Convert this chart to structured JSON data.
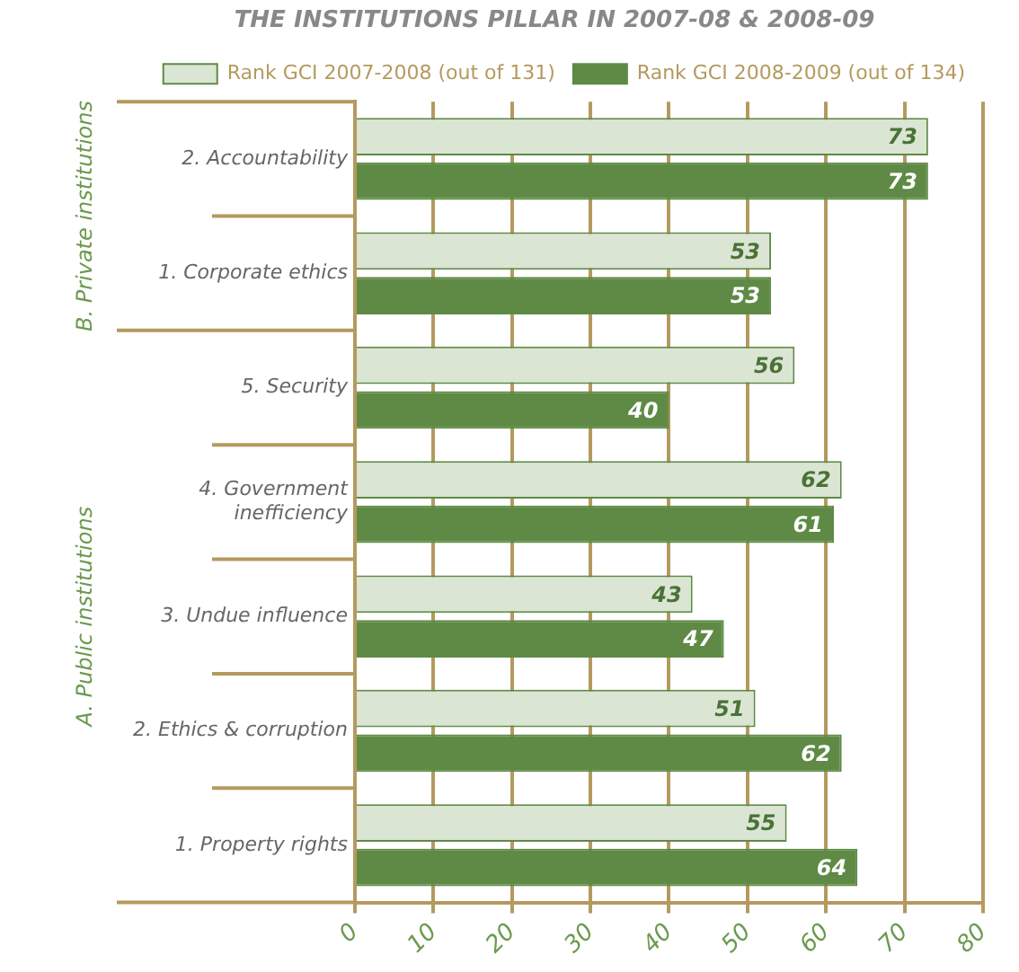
{
  "chart_data": {
    "type": "bar",
    "orientation": "horizontal",
    "title": "THE INSTITUTIONS PILLAR IN 2007-08 & 2008-09",
    "categories": [
      "2. Accountability",
      "1. Corporate ethics",
      "5. Security",
      "4. Government inefficiency",
      "3. Undue influence",
      "2. Ethics & corruption",
      "1. Property rights"
    ],
    "series": [
      {
        "name": "Rank GCI 2007-2008 (out of 131)",
        "color": "#dbe5d4",
        "values": [
          73,
          53,
          56,
          62,
          43,
          51,
          55
        ]
      },
      {
        "name": "Rank GCI 2008-2009 (out of 134)",
        "color": "#5e8a45",
        "values": [
          73,
          53,
          40,
          61,
          47,
          62,
          64
        ]
      }
    ],
    "xlim": [
      0,
      80
    ],
    "xticks": [
      0,
      10,
      20,
      30,
      40,
      50,
      60,
      70,
      80
    ],
    "grid": "x",
    "legend": "top",
    "data_labels": true,
    "annotations": [
      "B. Private institutions",
      "A. Public institutions"
    ]
  }
}
